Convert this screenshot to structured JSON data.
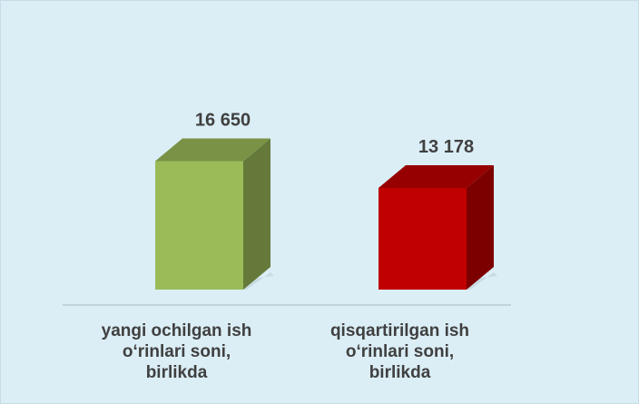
{
  "chart_data": {
    "type": "bar3d",
    "categories": [
      "yangi ochilgan ish\no‘rinlari soni,\nbirlikda",
      "qisqartirilgan ish\no‘rinlari soni,\nbirlikda"
    ],
    "values": [
      16650,
      13178
    ],
    "value_labels": [
      "16 650",
      "13 178"
    ],
    "colors": [
      "#9bbb59",
      "#c00000"
    ]
  }
}
